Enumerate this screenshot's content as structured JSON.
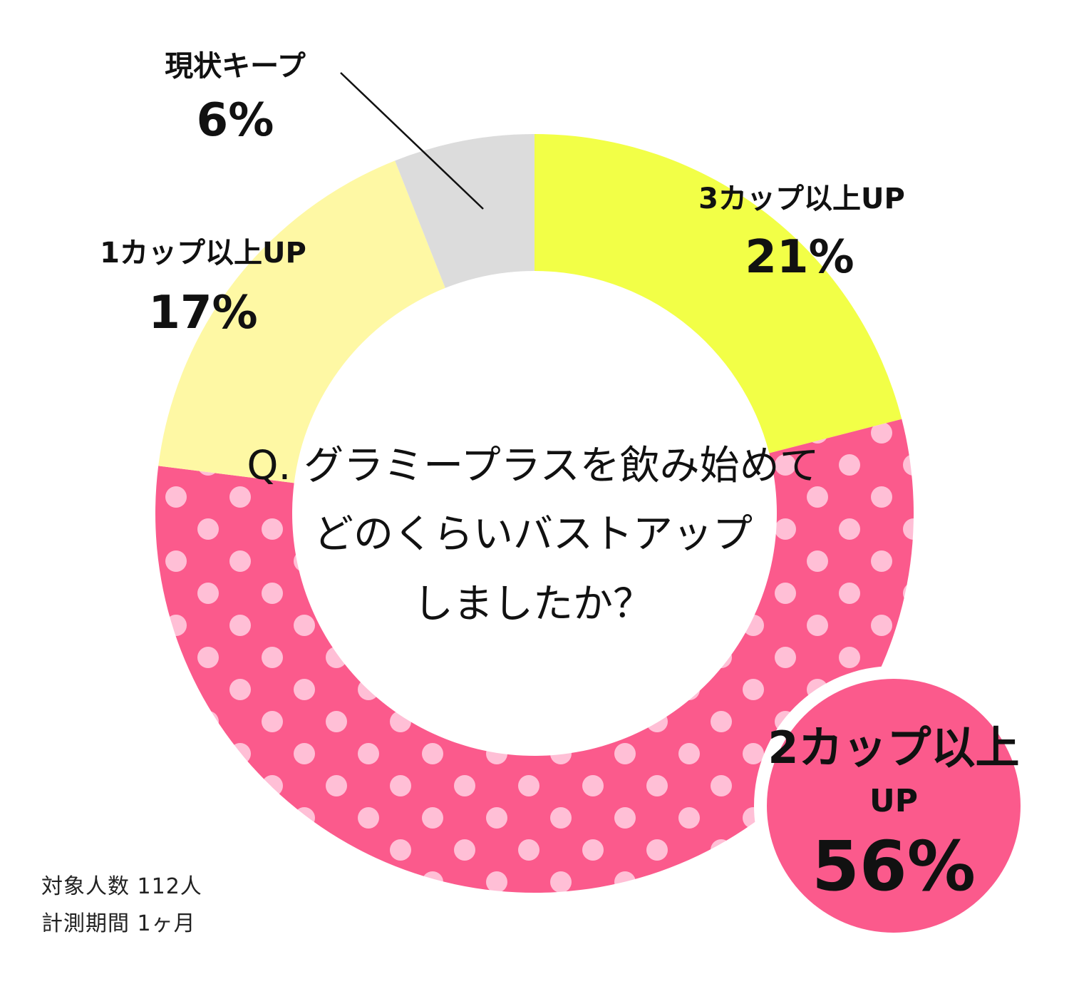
{
  "chart_data": {
    "type": "pie",
    "donut": true,
    "question_lines": [
      "Q. グラミープラスを飲み始めて",
      "どのくらいバストアップ",
      "しましたか？"
    ],
    "slices": [
      {
        "name": "3カップ以上UP",
        "value": 21,
        "value_label": "21%",
        "color": "#f2ff47"
      },
      {
        "name": "2カップ以上UP",
        "value": 56,
        "value_label": "56%",
        "color": "#fb5a8c",
        "pattern": "polka-dots",
        "dot_color": "#ffbfd6"
      },
      {
        "name": "1カップ以上UP",
        "value": 17,
        "value_label": "17%",
        "color": "#fef8a4"
      },
      {
        "name": "現状キープ",
        "value": 6,
        "value_label": "6%",
        "color": "#dcdcdc"
      }
    ],
    "highlight": {
      "line1": "2カップ以上",
      "line2": "UP",
      "value_label": "56%"
    }
  },
  "notes": [
    "対象人数 112人",
    "計測期間 1ヶ月"
  ]
}
